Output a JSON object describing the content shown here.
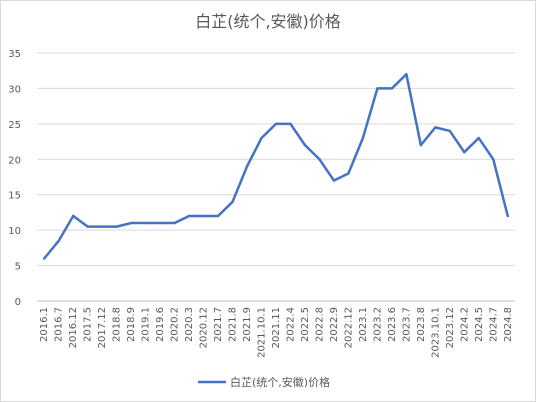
{
  "chart_data": {
    "type": "line",
    "title": "白芷(统个,安徽)价格",
    "xlabel": "",
    "ylabel": "",
    "ylim": [
      0,
      35
    ],
    "yticks": [
      0,
      5,
      10,
      15,
      20,
      25,
      30,
      35
    ],
    "grid": true,
    "legend_position": "bottom",
    "line_color": "#4472C4",
    "x_labels": [
      "2016.1",
      "2016.7",
      "2016.12",
      "2017.5",
      "2017.12",
      "2018.8",
      "2018.9",
      "2019.1",
      "2019.6",
      "2020.2",
      "2020.3",
      "2020.12",
      "2021.7",
      "2021.8",
      "2021.9",
      "2021.10.1",
      "2021.11",
      "2022.4",
      "2022.5",
      "2022.8",
      "2022.9",
      "2022.12",
      "2023.1",
      "2023.2",
      "2023.6",
      "2023.7",
      "2023.8",
      "2023.10.1",
      "2023.12",
      "2024.2",
      "2024.5",
      "2024.7",
      "2024.8"
    ],
    "series": [
      {
        "name": "白芷(统个,安徽)价格",
        "values": [
          6,
          8.5,
          12,
          10.5,
          10.5,
          10.5,
          11,
          11,
          11,
          11,
          12,
          12,
          12,
          14,
          19,
          23,
          25,
          25,
          22,
          20,
          17,
          18,
          23,
          30,
          30,
          32,
          22,
          24.5,
          24,
          21,
          23,
          20,
          12
        ]
      }
    ]
  }
}
